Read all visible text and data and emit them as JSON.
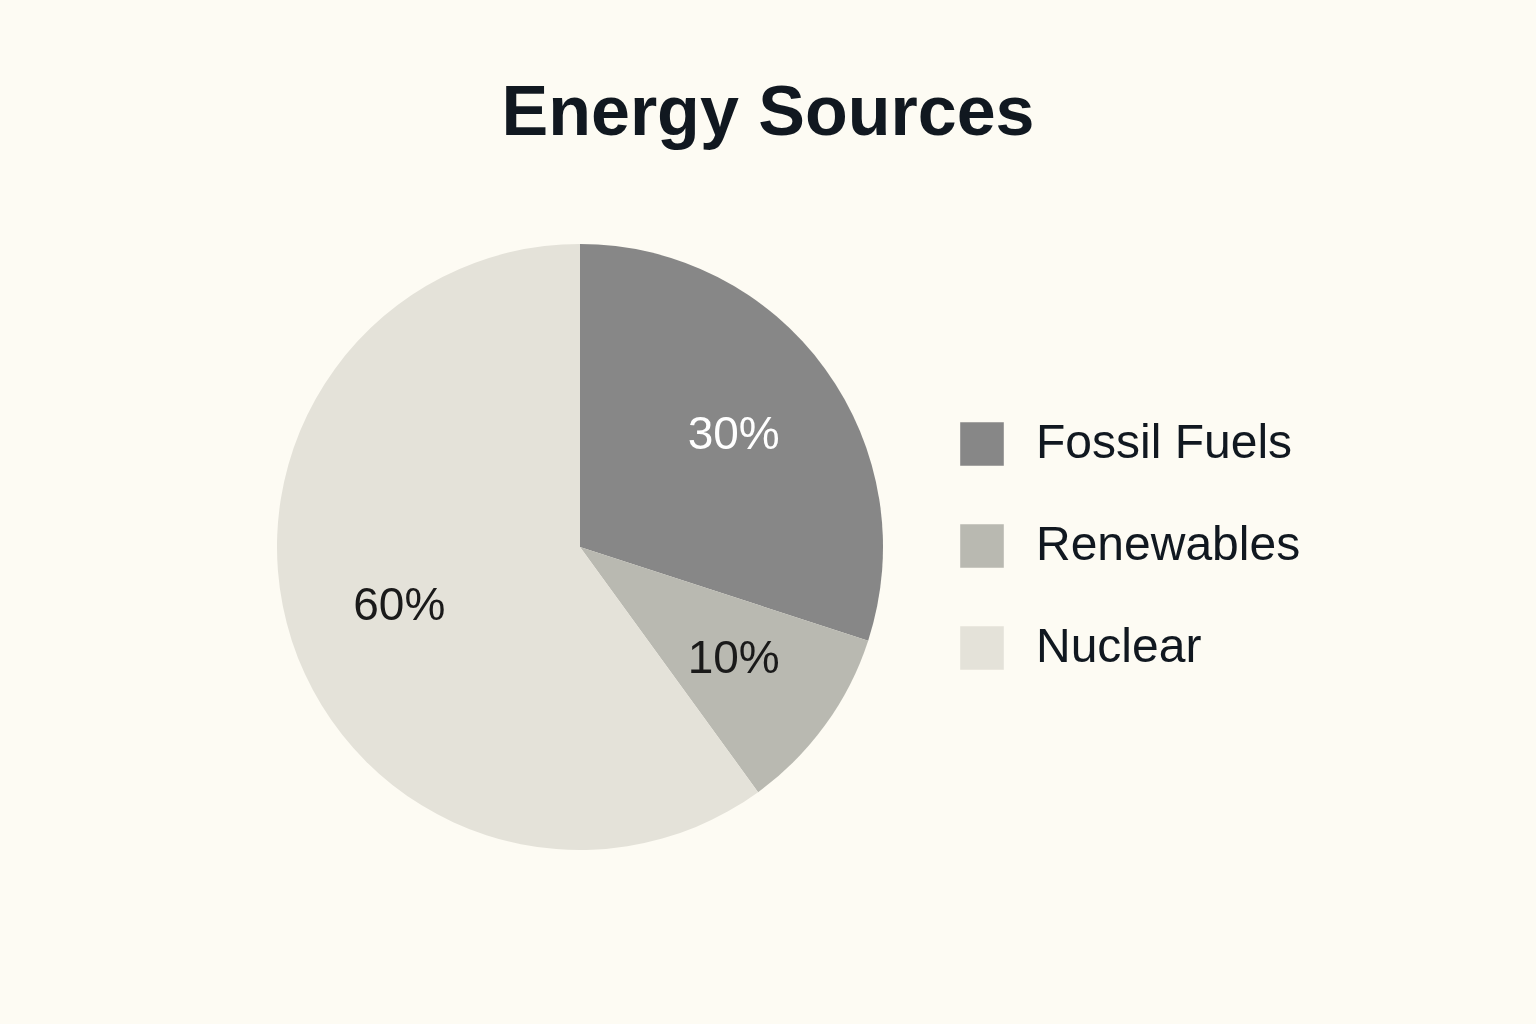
{
  "chart_data": {
    "type": "pie",
    "title": "Energy Sources",
    "categories": [
      "Fossil Fuels",
      "Renewables",
      "Nuclear"
    ],
    "values": [
      30,
      10,
      60
    ],
    "value_labels": [
      "30%",
      "10%",
      "60%"
    ],
    "colors": [
      "#878787",
      "#b9b9b1",
      "#e4e2d9"
    ],
    "legend": "right"
  }
}
